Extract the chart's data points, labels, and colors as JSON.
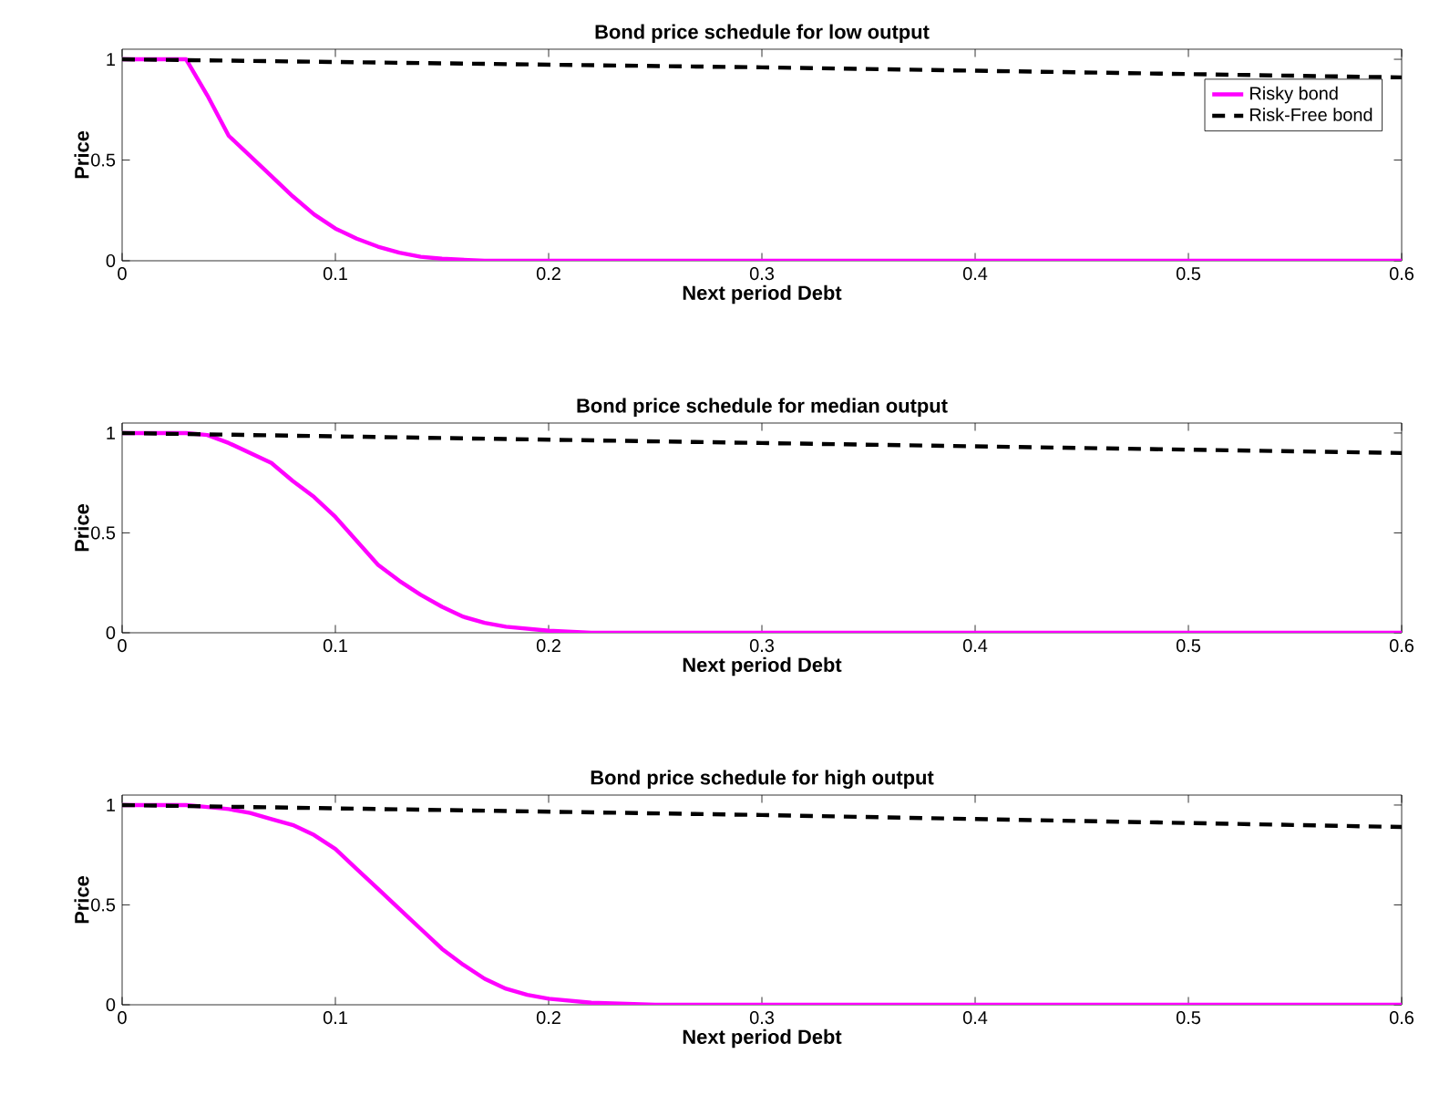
{
  "chart_data": [
    {
      "type": "line",
      "title": "Bond price schedule for low output",
      "xlabel": "Next period Debt",
      "ylabel": "Price",
      "xlim": [
        0,
        0.6
      ],
      "ylim": [
        0,
        1.05
      ],
      "xticks": [
        0,
        0.1,
        0.2,
        0.3,
        0.4,
        0.5,
        0.6
      ],
      "yticks": [
        0,
        0.5,
        1
      ],
      "legend": "top right",
      "series": [
        {
          "name": "Risky bond",
          "color": "#ff00ff",
          "line_style": "solid",
          "x": [
            0,
            0.01,
            0.02,
            0.03,
            0.04,
            0.05,
            0.06,
            0.07,
            0.08,
            0.09,
            0.1,
            0.11,
            0.12,
            0.13,
            0.14,
            0.15,
            0.17,
            0.2,
            0.3,
            0.4,
            0.5,
            0.6
          ],
          "values": [
            1,
            1,
            1,
            1,
            0.82,
            0.62,
            0.52,
            0.42,
            0.32,
            0.23,
            0.16,
            0.11,
            0.07,
            0.04,
            0.02,
            0.01,
            0,
            0,
            0,
            0,
            0,
            0
          ]
        },
        {
          "name": "Risk-Free bond",
          "color": "#000000",
          "line_style": "dashed",
          "x": [
            0,
            0.3,
            0.6
          ],
          "values": [
            1,
            0.96,
            0.91
          ]
        }
      ]
    },
    {
      "type": "line",
      "title": "Bond price schedule for median output",
      "xlabel": "Next period Debt",
      "ylabel": "Price",
      "xlim": [
        0,
        0.6
      ],
      "ylim": [
        0,
        1.05
      ],
      "xticks": [
        0,
        0.1,
        0.2,
        0.3,
        0.4,
        0.5,
        0.6
      ],
      "yticks": [
        0,
        0.5,
        1
      ],
      "series": [
        {
          "color": "#ff00ff",
          "line_style": "solid",
          "x": [
            0,
            0.01,
            0.02,
            0.03,
            0.04,
            0.05,
            0.06,
            0.07,
            0.08,
            0.09,
            0.1,
            0.11,
            0.12,
            0.13,
            0.14,
            0.15,
            0.16,
            0.17,
            0.18,
            0.2,
            0.22,
            0.3,
            0.4,
            0.5,
            0.6
          ],
          "values": [
            1,
            1,
            1,
            1,
            0.99,
            0.95,
            0.9,
            0.85,
            0.76,
            0.68,
            0.58,
            0.46,
            0.34,
            0.26,
            0.19,
            0.13,
            0.08,
            0.05,
            0.03,
            0.01,
            0,
            0,
            0,
            0,
            0
          ]
        },
        {
          "color": "#000000",
          "line_style": "dashed",
          "x": [
            0,
            0.3,
            0.6
          ],
          "values": [
            1,
            0.95,
            0.9
          ]
        }
      ]
    },
    {
      "type": "line",
      "title": "Bond price schedule for high output",
      "xlabel": "Next period Debt",
      "ylabel": "Price",
      "xlim": [
        0,
        0.6
      ],
      "ylim": [
        0,
        1.05
      ],
      "xticks": [
        0,
        0.1,
        0.2,
        0.3,
        0.4,
        0.5,
        0.6
      ],
      "yticks": [
        0,
        0.5,
        1
      ],
      "series": [
        {
          "color": "#ff00ff",
          "line_style": "solid",
          "x": [
            0,
            0.01,
            0.02,
            0.03,
            0.04,
            0.05,
            0.06,
            0.07,
            0.08,
            0.09,
            0.1,
            0.11,
            0.12,
            0.13,
            0.14,
            0.15,
            0.16,
            0.17,
            0.18,
            0.19,
            0.2,
            0.22,
            0.25,
            0.3,
            0.4,
            0.5,
            0.6
          ],
          "values": [
            1,
            1,
            1,
            1,
            0.99,
            0.98,
            0.96,
            0.93,
            0.9,
            0.85,
            0.78,
            0.68,
            0.58,
            0.48,
            0.38,
            0.28,
            0.2,
            0.13,
            0.08,
            0.05,
            0.03,
            0.01,
            0,
            0,
            0,
            0,
            0
          ]
        },
        {
          "color": "#000000",
          "line_style": "dashed",
          "x": [
            0,
            0.3,
            0.6
          ],
          "values": [
            1,
            0.95,
            0.89
          ]
        }
      ]
    }
  ]
}
